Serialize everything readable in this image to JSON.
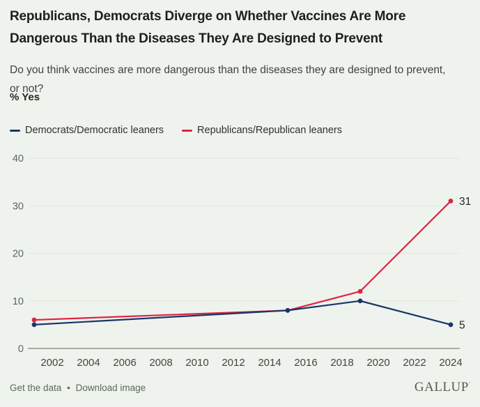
{
  "header": {
    "title_line1": "Republicans, Democrats Diverge on Whether Vaccines Are More",
    "title_line2": "Dangerous Than the Diseases They Are Designed to Prevent",
    "subtitle_line1": "Do you think vaccines are more dangerous than the diseases they are designed to prevent,",
    "subtitle_line2": "or not?",
    "unit_label": "% Yes"
  },
  "legend": {
    "items": [
      {
        "label": "Democrats/Democratic leaners",
        "color": "#1a3667"
      },
      {
        "label": "Republicans/Republican leaners",
        "color": "#df2340"
      }
    ]
  },
  "chart_data": {
    "type": "line",
    "title": "Republicans, Democrats Diverge on Whether Vaccines Are More Dangerous Than the Diseases They Are Designed to Prevent",
    "subtitle": "Do you think vaccines are more dangerous than the diseases they are designed to prevent, or not?",
    "ylabel": "% Yes",
    "x": [
      2001,
      2015,
      2019,
      2024
    ],
    "series": [
      {
        "name": "Republicans/Republican leaners",
        "color": "#df2340",
        "values": [
          6,
          8,
          12,
          31
        ],
        "end_label": "31"
      },
      {
        "name": "Democrats/Democratic leaners",
        "color": "#1a3667",
        "values": [
          5,
          8,
          10,
          5
        ],
        "end_label": "5"
      }
    ],
    "y_ticks": [
      0,
      10,
      20,
      30,
      40
    ],
    "x_ticks": [
      2002,
      2004,
      2006,
      2008,
      2010,
      2012,
      2014,
      2016,
      2018,
      2020,
      2022,
      2024
    ],
    "ylim": [
      0,
      40
    ],
    "xlim": [
      2000.65,
      2024.5
    ],
    "grid": true,
    "legend_position": "top"
  },
  "footer": {
    "link1": "Get the data",
    "separator": "•",
    "link2": "Download image",
    "brand": "GALLUP"
  }
}
